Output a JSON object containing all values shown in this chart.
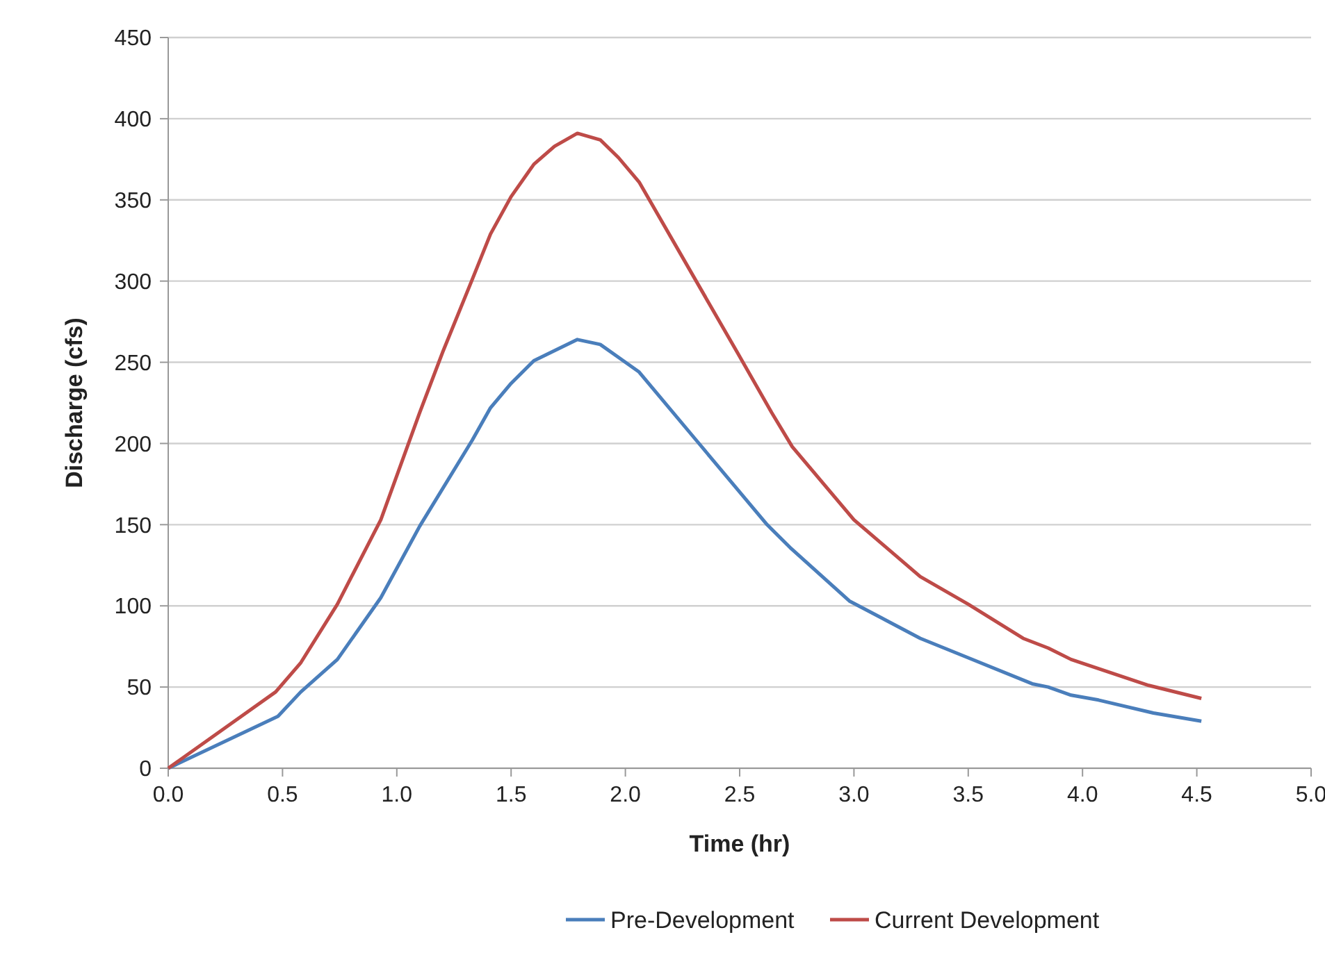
{
  "chart_data": {
    "type": "line",
    "xlabel": "Time (hr)",
    "ylabel": "Discharge (cfs)",
    "xlim": [
      0,
      5
    ],
    "xticks": [
      {
        "value": 0,
        "label": "0.0"
      },
      {
        "value": 0.5,
        "label": "0.5"
      },
      {
        "value": 1,
        "label": "1.0"
      },
      {
        "value": 1.5,
        "label": "1.5"
      },
      {
        "value": 2,
        "label": "2.0"
      },
      {
        "value": 2.5,
        "label": "2.5"
      },
      {
        "value": 3,
        "label": "3.0"
      },
      {
        "value": 3.5,
        "label": "3.5"
      },
      {
        "value": 4,
        "label": "4.0"
      },
      {
        "value": 4.5,
        "label": "4.5"
      },
      {
        "value": 5,
        "label": "5.0"
      }
    ],
    "ylim": [
      0,
      450
    ],
    "yticks": [
      0,
      50,
      100,
      150,
      200,
      250,
      300,
      350,
      400,
      450
    ],
    "grid": "y",
    "legend": "bottom",
    "marker": "none",
    "line_style": "solid",
    "series": [
      {
        "name": "Pre-Development",
        "color": "#4a7ebb",
        "x": [
          0,
          0.48,
          0.58,
          0.74,
          0.93,
          1.1,
          1.33,
          1.41,
          1.5,
          1.6,
          1.79,
          1.89,
          1.97,
          2.06,
          2.31,
          2.62,
          2.72,
          2.98,
          3.29,
          3.5,
          3.78,
          3.85,
          3.95,
          4.07,
          4.31,
          4.52
        ],
        "values": [
          0,
          32,
          47,
          67,
          105,
          149,
          202,
          222,
          237,
          251,
          264,
          261,
          253,
          244,
          202,
          150,
          136,
          103,
          80,
          68,
          52,
          50,
          45,
          42,
          34,
          29
        ]
      },
      {
        "name": "Current Development",
        "color": "#be4b48",
        "x": [
          0,
          0.47,
          0.58,
          0.74,
          0.93,
          1.1,
          1.2,
          1.33,
          1.41,
          1.5,
          1.6,
          1.69,
          1.79,
          1.89,
          1.97,
          2.06,
          2.49,
          2.64,
          2.73,
          3.0,
          3.29,
          3.5,
          3.74,
          3.85,
          3.95,
          4.29,
          4.52
        ],
        "values": [
          0,
          47,
          65,
          101,
          153,
          219,
          256,
          301,
          329,
          352,
          372,
          383,
          391,
          387,
          376,
          361,
          256,
          219,
          198,
          153,
          118,
          101,
          80,
          74,
          67,
          51,
          43
        ]
      }
    ]
  }
}
